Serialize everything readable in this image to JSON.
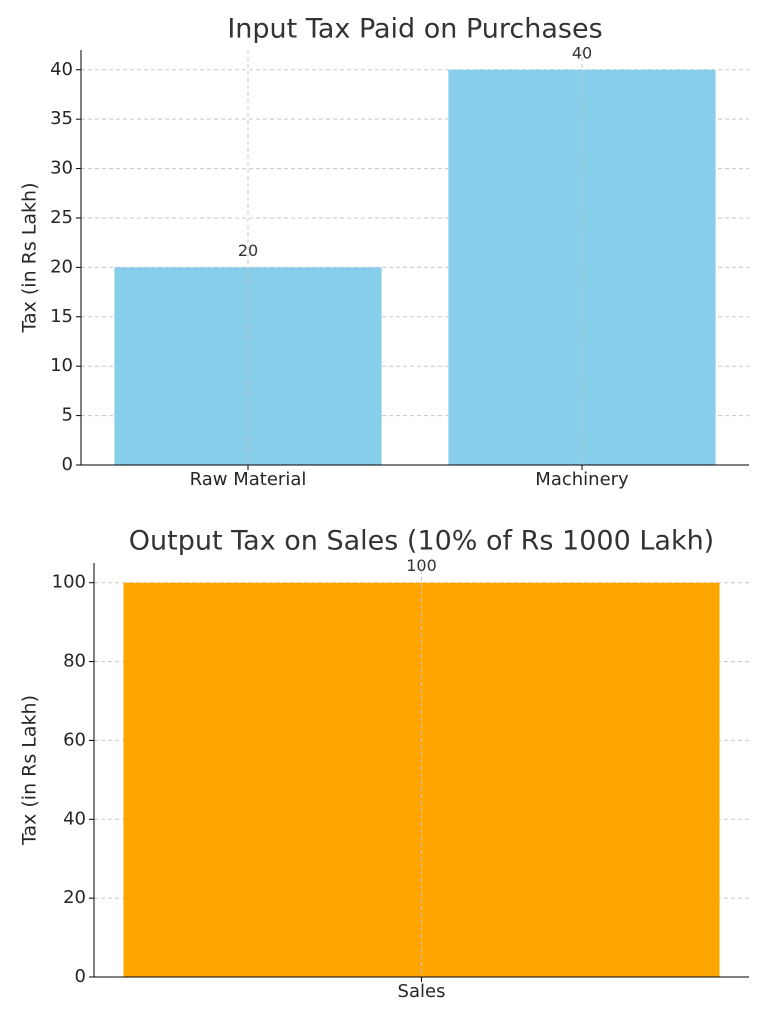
{
  "chart_data": [
    {
      "type": "bar",
      "title": "Input Tax Paid on Purchases",
      "y_label": "Tax (in Rs Lakh)",
      "categories": [
        "Raw Material",
        "Machinery"
      ],
      "values": [
        20,
        40
      ],
      "color": "#87ceeb",
      "ylim": [
        0,
        42
      ],
      "yticks": [
        0,
        5,
        10,
        15,
        20,
        25,
        30,
        35,
        40
      ],
      "grid": true
    },
    {
      "type": "bar",
      "title": "Output Tax on Sales (10% of Rs 1000 Lakh)",
      "y_label": "Tax (in Rs Lakh)",
      "categories": [
        "Sales"
      ],
      "values": [
        100
      ],
      "color": "#ffa500",
      "ylim": [
        0,
        105
      ],
      "yticks": [
        0,
        20,
        40,
        60,
        80,
        100
      ],
      "grid": true
    }
  ]
}
